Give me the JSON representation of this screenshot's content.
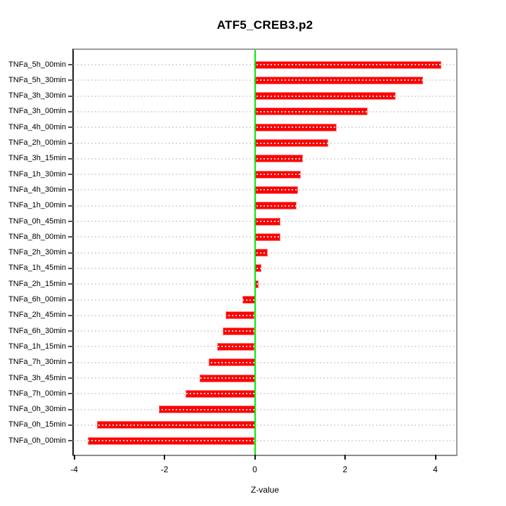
{
  "page": {
    "background": "#ffffff"
  },
  "chart_data": {
    "type": "bar",
    "orientation": "horizontal",
    "title": "ATF5_CREB3.p2",
    "xlabel": "Z-value",
    "ylabel": "",
    "categories": [
      "TNFa_5h_00min",
      "TNFa_5h_30min",
      "TNFa_3h_30min",
      "TNFa_3h_00min",
      "TNFa_4h_00min",
      "TNFa_2h_00min",
      "TNFa_3h_15min",
      "TNFa_1h_30min",
      "TNFa_4h_30min",
      "TNFa_1h_00min",
      "TNFa_0h_45min",
      "TNFa_8h_00min",
      "TNFa_2h_30min",
      "TNFa_1h_45min",
      "TNFa_2h_15min",
      "TNFa_6h_00min",
      "TNFa_2h_45min",
      "TNFa_6h_30min",
      "TNFa_1h_15min",
      "TNFa_7h_30min",
      "TNFa_3h_45min",
      "TNFa_7h_00min",
      "TNFa_0h_30min",
      "TNFa_0h_15min",
      "TNFa_0h_00min"
    ],
    "values": [
      4.14,
      3.73,
      3.12,
      2.5,
      1.82,
      1.63,
      1.06,
      1.02,
      0.96,
      0.92,
      0.57,
      0.56,
      0.29,
      0.14,
      0.09,
      -0.28,
      -0.65,
      -0.71,
      -0.83,
      -1.02,
      -1.23,
      -1.53,
      -2.12,
      -3.49,
      -3.7
    ],
    "xticks": [
      -4,
      -2,
      0,
      2,
      4
    ],
    "xtick_labels": [
      "-4",
      "-2",
      "0",
      "2",
      "4"
    ],
    "xlim": [
      -4.01,
      4.46
    ],
    "zero_line": 0,
    "grid": "dotted horizontal line at each category, drawn over bars",
    "legend": "none",
    "colors": {
      "bar_fill": "#ff0000",
      "bar_edge": "#ff7a7a",
      "zero_line": "#00ee00",
      "grid_line": "#dcdcdc",
      "frame": "#9c9c9c",
      "axis": "#1a1a1a",
      "text": "#000000"
    }
  }
}
